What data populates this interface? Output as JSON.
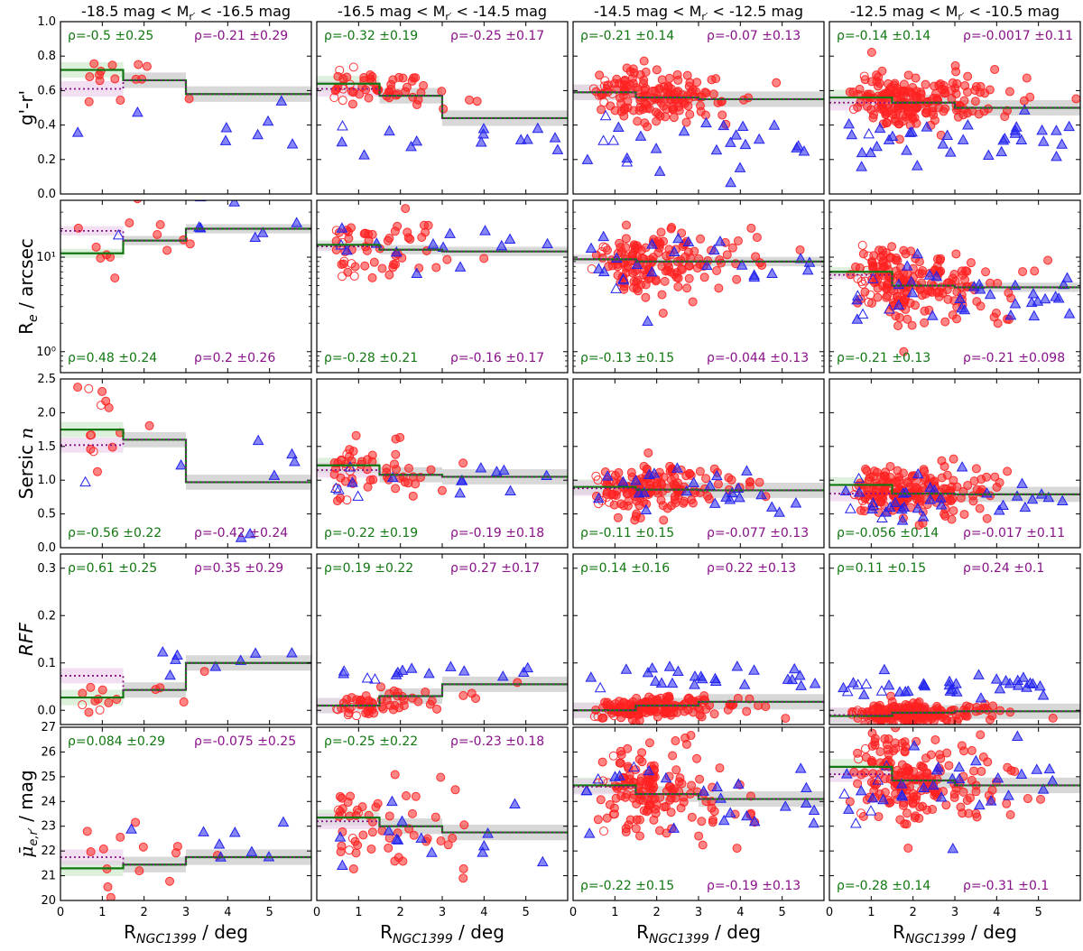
{
  "colors": {
    "red_point": "#ff2020",
    "blue_point": "#2222ee",
    "green_line": "#117711",
    "purple_line": "#881188",
    "grey_band": "#c8c8c8",
    "rho_green": "#117711",
    "rho_purple": "#881188"
  },
  "chart_data": {
    "type": "scatter",
    "description_hidden": false,
    "x_label": "R_NGC1399 / deg",
    "x_label_main": "R",
    "x_label_sub": "NGC1399",
    "x_label_tail": " / deg",
    "x_ticks": [
      "0",
      "1",
      "2",
      "3",
      "4",
      "5"
    ],
    "x_range": [
      0,
      6
    ],
    "bin_edges": [
      0,
      1.5,
      3,
      6
    ],
    "columns": [
      {
        "title_pre": "-18.5 mag < M",
        "title_sub": "r′",
        "title_post": " < -16.5 mag"
      },
      {
        "title_pre": "-16.5 mag < M",
        "title_sub": "r′",
        "title_post": " < -14.5 mag"
      },
      {
        "title_pre": "-14.5 mag < M",
        "title_sub": "r′",
        "title_post": " < -12.5 mag"
      },
      {
        "title_pre": "-12.5 mag < M",
        "title_sub": "r′",
        "title_post": " < -10.5 mag"
      }
    ],
    "rows": [
      {
        "key": "color",
        "ylabel": "g'-r'",
        "yrange": [
          0,
          1.0
        ],
        "yscale": "linear",
        "yticks": [
          {
            "v": 0.0,
            "t": "0.0"
          },
          {
            "v": 0.2,
            "t": "0.2"
          },
          {
            "v": 0.4,
            "t": "0.4"
          },
          {
            "v": 0.6,
            "t": "0.6"
          },
          {
            "v": 0.8,
            "t": "0.8"
          },
          {
            "v": 1.0,
            "t": "1.0"
          }
        ],
        "rho_pos": "top",
        "panels": [
          {
            "rho_green": "ρ=-0.5 ±0.25",
            "rho_purple": "ρ=-0.21 ±0.29",
            "green": [
              0.72,
              0.66,
              0.58
            ],
            "purple": [
              0.61,
              0.66,
              0.58
            ],
            "center": 0.62,
            "spread": 0.09,
            "blue_center": 0.45,
            "n_red": 14,
            "n_blue": 8
          },
          {
            "rho_green": "ρ=-0.32 ±0.19",
            "rho_purple": "ρ=-0.25 ±0.17",
            "green": [
              0.64,
              0.57,
              0.44
            ],
            "purple": [
              0.61,
              0.57,
              0.44
            ],
            "center": 0.63,
            "spread": 0.05,
            "blue_center": 0.32,
            "n_red": 55,
            "n_blue": 14
          },
          {
            "rho_green": "ρ=-0.21 ±0.14",
            "rho_purple": "ρ=-0.07 ±0.13",
            "green": [
              0.59,
              0.56,
              0.55
            ],
            "purple": [
              0.59,
              0.56,
              0.55
            ],
            "center": 0.58,
            "spread": 0.07,
            "blue_center": 0.3,
            "n_red": 150,
            "n_blue": 25
          },
          {
            "rho_green": "ρ=-0.14 ±0.14",
            "rho_purple": "ρ=-0.0017 ±0.11",
            "green": [
              0.56,
              0.53,
              0.5
            ],
            "purple": [
              0.53,
              0.53,
              0.5
            ],
            "center": 0.56,
            "spread": 0.08,
            "blue_center": 0.3,
            "n_red": 190,
            "n_blue": 35
          }
        ]
      },
      {
        "key": "re",
        "ylabel": "R_e / arcsec",
        "yrange": [
          0.6,
          40
        ],
        "yscale": "log",
        "yticks": [
          {
            "v": 1,
            "t": "10⁰"
          },
          {
            "v": 10,
            "t": "10¹"
          }
        ],
        "rho_pos": "bottom",
        "panels": [
          {
            "rho_green": "ρ=0.48 ±0.24",
            "rho_purple": "ρ=0.2 ±0.26",
            "green": [
              11,
              15,
              20
            ],
            "purple": [
              19,
              15,
              20
            ],
            "center": 15,
            "spread": 0.35,
            "blue_center": 20,
            "n_red": 14,
            "n_blue": 8
          },
          {
            "rho_green": "ρ=-0.28 ±0.21",
            "rho_purple": "ρ=-0.16 ±0.17",
            "green": [
              13.5,
              12,
              11.5
            ],
            "purple": [
              13,
              12,
              11.5
            ],
            "center": 12,
            "spread": 0.3,
            "blue_center": 11,
            "n_red": 55,
            "n_blue": 14
          },
          {
            "rho_green": "ρ=-0.13 ±0.15",
            "rho_purple": "ρ=-0.044 ±0.13",
            "green": [
              9.5,
              9,
              9
            ],
            "purple": [
              9.5,
              9,
              9
            ],
            "center": 8.5,
            "spread": 0.3,
            "blue_center": 8,
            "n_red": 150,
            "n_blue": 25
          },
          {
            "rho_green": "ρ=-0.21 ±0.13",
            "rho_purple": "ρ=-0.21 ±0.098",
            "green": [
              7,
              5,
              4.8
            ],
            "purple": [
              6.5,
              5,
              4.8
            ],
            "center": 5.5,
            "spread": 0.3,
            "blue_center": 4,
            "n_red": 190,
            "n_blue": 35
          }
        ]
      },
      {
        "key": "sersic",
        "ylabel": "Sersic n",
        "ylabel_main": "Sersic ",
        "ylabel_italic": "n",
        "yrange": [
          0,
          2.5
        ],
        "yscale": "linear",
        "yticks": [
          {
            "v": 0.0,
            "t": "0.0"
          },
          {
            "v": 0.5,
            "t": "0.5"
          },
          {
            "v": 1.0,
            "t": "1.0"
          },
          {
            "v": 1.5,
            "t": "1.5"
          },
          {
            "v": 2.0,
            "t": "2.0"
          },
          {
            "v": 2.5,
            "t": "2.5"
          }
        ],
        "rho_pos": "bottom",
        "panels": [
          {
            "rho_green": "ρ=-0.56 ±0.22",
            "rho_purple": "ρ=-0.42 ±0.24",
            "green": [
              1.75,
              1.6,
              0.97
            ],
            "purple": [
              1.52,
              1.6,
              0.97
            ],
            "center": 1.5,
            "spread": 0.4,
            "blue_center": 1.1,
            "n_red": 14,
            "n_blue": 8
          },
          {
            "rho_green": "ρ=-0.22 ±0.19",
            "rho_purple": "ρ=-0.19 ±0.18",
            "green": [
              1.22,
              1.08,
              1.05
            ],
            "purple": [
              1.15,
              1.08,
              1.05
            ],
            "center": 1.1,
            "spread": 0.2,
            "blue_center": 1.0,
            "n_red": 55,
            "n_blue": 14
          },
          {
            "rho_green": "ρ=-0.11 ±0.15",
            "rho_purple": "ρ=-0.077 ±0.13",
            "green": [
              0.9,
              0.86,
              0.85
            ],
            "purple": [
              0.88,
              0.86,
              0.85
            ],
            "center": 0.88,
            "spread": 0.18,
            "blue_center": 0.8,
            "n_red": 150,
            "n_blue": 25
          },
          {
            "rho_green": "ρ=-0.056 ±0.14",
            "rho_purple": "ρ=-0.017 ±0.11",
            "green": [
              0.93,
              0.8,
              0.79
            ],
            "purple": [
              0.8,
              0.8,
              0.79
            ],
            "center": 0.8,
            "spread": 0.18,
            "blue_center": 0.7,
            "n_red": 190,
            "n_blue": 35
          }
        ]
      },
      {
        "key": "rff",
        "ylabel": "RFF",
        "yrange": [
          -0.03,
          0.33
        ],
        "yscale": "linear",
        "yticks": [
          {
            "v": 0.0,
            "t": "0.0"
          },
          {
            "v": 0.1,
            "t": "0.1"
          },
          {
            "v": 0.2,
            "t": "0.2"
          },
          {
            "v": 0.3,
            "t": "0.3"
          }
        ],
        "rho_pos": "top",
        "panels": [
          {
            "rho_green": "ρ=0.61 ±0.25",
            "rho_purple": "ρ=0.35 ±0.29",
            "green": [
              0.027,
              0.043,
              0.1
            ],
            "purple": [
              0.073,
              0.043,
              0.1
            ],
            "center": 0.035,
            "spread": 0.02,
            "blue_center": 0.12,
            "n_red": 14,
            "n_blue": 8
          },
          {
            "rho_green": "ρ=0.19 ±0.22",
            "rho_purple": "ρ=0.27 ±0.17",
            "green": [
              0.01,
              0.03,
              0.055
            ],
            "purple": [
              0.01,
              0.03,
              0.055
            ],
            "center": 0.012,
            "spread": 0.012,
            "blue_center": 0.08,
            "n_red": 55,
            "n_blue": 14
          },
          {
            "rho_green": "ρ=0.14 ±0.16",
            "rho_purple": "ρ=0.22 ±0.13",
            "green": [
              0.0,
              0.01,
              0.018
            ],
            "purple": [
              0.0,
              0.01,
              0.018
            ],
            "center": 0.005,
            "spread": 0.012,
            "blue_center": 0.07,
            "n_red": 150,
            "n_blue": 25
          },
          {
            "rho_green": "ρ=0.11 ±0.15",
            "rho_purple": "ρ=0.24 ±0.1",
            "green": [
              -0.012,
              -0.005,
              -0.002
            ],
            "purple": [
              -0.01,
              -0.005,
              -0.002
            ],
            "center": -0.005,
            "spread": 0.01,
            "blue_center": 0.05,
            "n_red": 190,
            "n_blue": 35
          }
        ]
      },
      {
        "key": "mu",
        "ylabel": "mu_e,r' / mag",
        "yrange": [
          20,
          27
        ],
        "yscale": "linear",
        "yticks": [
          {
            "v": 20,
            "t": "20"
          },
          {
            "v": 21,
            "t": "21"
          },
          {
            "v": 22,
            "t": "22"
          },
          {
            "v": 23,
            "t": "23"
          },
          {
            "v": 24,
            "t": "24"
          },
          {
            "v": 25,
            "t": "25"
          },
          {
            "v": 26,
            "t": "26"
          },
          {
            "v": 27,
            "t": "27"
          }
        ],
        "rho_pos_col": [
          "top",
          "top",
          "bottom",
          "bottom"
        ],
        "panels": [
          {
            "rho_green": "ρ=0.084 ±0.29",
            "rho_purple": "ρ=-0.075 ±0.25",
            "green": [
              21.3,
              21.45,
              21.75
            ],
            "purple": [
              21.75,
              21.45,
              21.75
            ],
            "center": 21.7,
            "spread": 0.9,
            "blue_center": 22.2,
            "n_red": 14,
            "n_blue": 8
          },
          {
            "rho_green": "ρ=-0.25 ±0.22",
            "rho_purple": "ρ=-0.23 ±0.18",
            "green": [
              23.35,
              23.0,
              22.75
            ],
            "purple": [
              23.2,
              23.0,
              22.75
            ],
            "center": 23.2,
            "spread": 1.0,
            "blue_center": 22.8,
            "n_red": 55,
            "n_blue": 14
          },
          {
            "rho_green": "ρ=-0.22 ±0.15",
            "rho_purple": "ρ=-0.19 ±0.13",
            "green": [
              24.65,
              24.3,
              24.1
            ],
            "purple": [
              24.6,
              24.3,
              24.1
            ],
            "center": 24.4,
            "spread": 0.9,
            "blue_center": 24.0,
            "n_red": 150,
            "n_blue": 25
          },
          {
            "rho_green": "ρ=-0.28 ±0.14",
            "rho_purple": "ρ=-0.31 ±0.1",
            "green": [
              25.4,
              24.85,
              24.65
            ],
            "purple": [
              25.1,
              24.85,
              24.65
            ],
            "center": 25.0,
            "spread": 0.9,
            "blue_center": 24.6,
            "n_red": 190,
            "n_blue": 35
          }
        ]
      }
    ]
  }
}
